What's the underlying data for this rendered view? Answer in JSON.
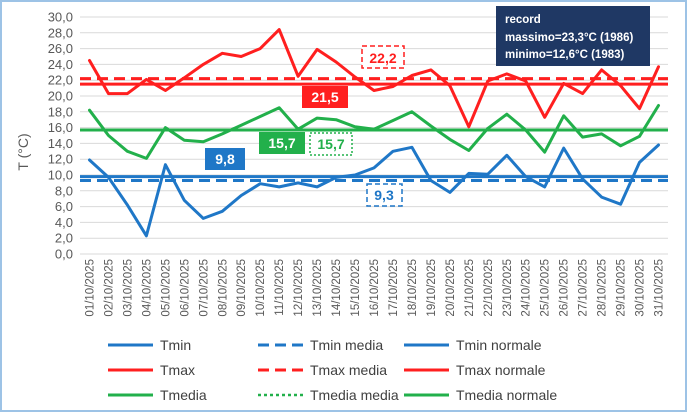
{
  "colors": {
    "tmin": "#1f77c7",
    "tmax": "#ff1f1f",
    "tmedia": "#22b04b",
    "grid": "#d9d9d9",
    "record_box": "#1f3864"
  },
  "chart_data": {
    "type": "line",
    "ylabel": "T (°C)",
    "ylim": [
      0,
      30
    ],
    "ytick_step": 2,
    "ytick_labels": [
      "0,0",
      "2,0",
      "4,0",
      "6,0",
      "8,0",
      "10,0",
      "12,0",
      "14,0",
      "16,0",
      "18,0",
      "20,0",
      "22,0",
      "24,0",
      "26,0",
      "28,0",
      "30,0"
    ],
    "categories": [
      "01/10/2025",
      "02/10/2025",
      "03/10/2025",
      "04/10/2025",
      "05/10/2025",
      "06/10/2025",
      "07/10/2025",
      "08/10/2025",
      "09/10/2025",
      "10/10/2025",
      "11/10/2025",
      "12/10/2025",
      "13/10/2025",
      "14/10/2025",
      "15/10/2025",
      "16/10/2025",
      "17/10/2025",
      "18/10/2025",
      "19/10/2025",
      "20/10/2025",
      "21/10/2025",
      "22/10/2025",
      "23/10/2025",
      "24/10/2025",
      "25/10/2025",
      "26/10/2025",
      "27/10/2025",
      "28/10/2025",
      "29/10/2025",
      "30/10/2025",
      "31/10/2025"
    ],
    "series": [
      {
        "name": "Tmin",
        "color_key": "tmin",
        "values": [
          11.9,
          9.7,
          6.2,
          2.3,
          11.3,
          6.8,
          4.5,
          5.4,
          7.4,
          8.9,
          8.5,
          9.0,
          8.5,
          9.7,
          10.0,
          10.9,
          13.0,
          13.5,
          9.3,
          7.8,
          10.2,
          10.1,
          12.5,
          9.8,
          8.5,
          13.4,
          9.5,
          7.2,
          6.3,
          11.6,
          13.8
        ]
      },
      {
        "name": "Tmax",
        "color_key": "tmax",
        "values": [
          24.5,
          20.3,
          20.3,
          22.1,
          20.7,
          22.3,
          24.0,
          25.4,
          25.0,
          26.0,
          28.4,
          22.5,
          25.9,
          24.3,
          22.4,
          20.7,
          21.2,
          22.6,
          23.3,
          21.3,
          16.1,
          21.9,
          22.8,
          21.9,
          17.3,
          21.6,
          20.3,
          23.3,
          21.3,
          18.4,
          23.7
        ]
      },
      {
        "name": "Tmedia",
        "color_key": "tmedia",
        "values": [
          18.2,
          15.0,
          13.0,
          12.1,
          16.0,
          14.4,
          14.2,
          15.2,
          16.3,
          17.4,
          18.5,
          15.8,
          17.2,
          17.0,
          16.1,
          15.8,
          16.9,
          18.0,
          16.2,
          14.5,
          13.1,
          15.9,
          17.7,
          15.7,
          12.9,
          17.5,
          14.8,
          15.2,
          13.7,
          14.9,
          18.8
        ]
      }
    ],
    "reference_lines": [
      {
        "name": "Tmin media",
        "value": 9.3,
        "color_key": "tmin",
        "style": "dashed"
      },
      {
        "name": "Tmin normale",
        "value": 9.8,
        "color_key": "tmin",
        "style": "solid"
      },
      {
        "name": "Tmax media",
        "value": 22.2,
        "color_key": "tmax",
        "style": "dashed"
      },
      {
        "name": "Tmax normale",
        "value": 21.5,
        "color_key": "tmax",
        "style": "solid"
      },
      {
        "name": "Tmedia media",
        "value": 15.7,
        "color_key": "tmedia",
        "style": "dotted"
      },
      {
        "name": "Tmedia normale",
        "value": 15.7,
        "color_key": "tmedia",
        "style": "solid"
      }
    ],
    "labels": {
      "tmax_media": "22,2",
      "tmax_normale": "21,5",
      "tmedia_normale": "15,7",
      "tmedia_media": "15,7",
      "tmin_normale": "9,8",
      "tmin_media": "9,3"
    },
    "record": {
      "title": "record",
      "max": "massimo=23,3°C (1986)",
      "min": "minimo=12,6°C (1983)"
    },
    "legend": [
      {
        "label": "Tmin",
        "color_key": "tmin",
        "style": "solid"
      },
      {
        "label": "Tmin media",
        "color_key": "tmin",
        "style": "dashed"
      },
      {
        "label": "Tmin normale",
        "color_key": "tmin",
        "style": "solid"
      },
      {
        "label": "Tmax",
        "color_key": "tmax",
        "style": "solid"
      },
      {
        "label": "Tmax media",
        "color_key": "tmax",
        "style": "dashed"
      },
      {
        "label": "Tmax normale",
        "color_key": "tmax",
        "style": "solid"
      },
      {
        "label": "Tmedia",
        "color_key": "tmedia",
        "style": "solid"
      },
      {
        "label": "Tmedia media",
        "color_key": "tmedia",
        "style": "dotted"
      },
      {
        "label": "Tmedia normale",
        "color_key": "tmedia",
        "style": "solid"
      }
    ]
  }
}
